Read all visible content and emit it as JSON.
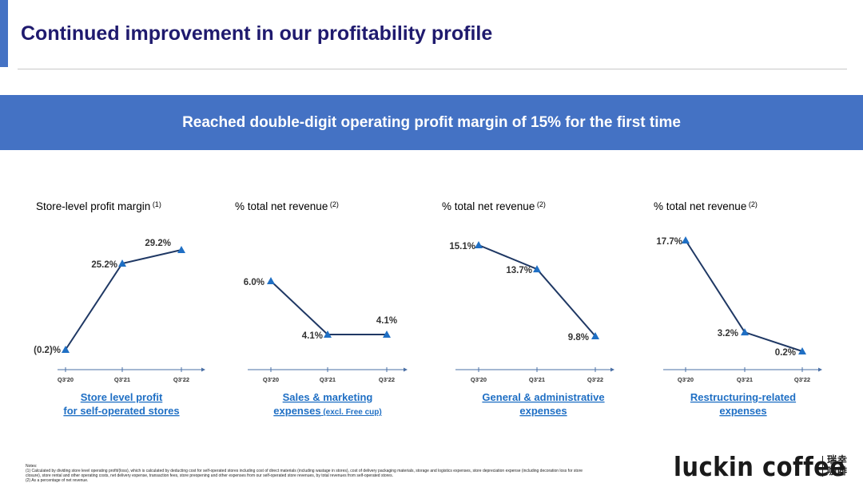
{
  "title": "Continued improvement in our profitability profile",
  "banner": "Reached double-digit operating profit margin of 15% for the first time",
  "colors": {
    "accent": "#4472c4",
    "title": "#1f1a6e",
    "line": "#1f3864",
    "marker": "#1f6fc4",
    "caption": "#1f6fc4"
  },
  "chart_data": [
    {
      "type": "line",
      "header": "Store-level profit margin",
      "header_sup": "(1)",
      "categories": [
        "Q3'20",
        "Q3'21",
        "Q3'22"
      ],
      "values": [
        -0.2,
        25.2,
        29.2
      ],
      "value_labels": [
        "(0.2)%",
        "25.2%",
        "29.2%"
      ],
      "caption_lines": [
        "Store level profit",
        "for self-operated stores"
      ],
      "caption_suffix": ""
    },
    {
      "type": "line",
      "header": "% total net revenue",
      "header_sup": "(2)",
      "categories": [
        "Q3'20",
        "Q3'21",
        "Q3'22"
      ],
      "values": [
        6.0,
        4.1,
        4.1
      ],
      "value_labels": [
        "6.0%",
        "4.1%",
        "4.1%"
      ],
      "caption_lines": [
        "Sales & marketing",
        "expenses"
      ],
      "caption_suffix": " (excl. Free cup)"
    },
    {
      "type": "line",
      "header": "% total net revenue",
      "header_sup": "(2)",
      "categories": [
        "Q3'20",
        "Q3'21",
        "Q3'22"
      ],
      "values": [
        15.1,
        13.7,
        9.8
      ],
      "value_labels": [
        "15.1%",
        "13.7%",
        "9.8%"
      ],
      "caption_lines": [
        "General & administrative",
        "expenses"
      ],
      "caption_suffix": ""
    },
    {
      "type": "line",
      "header": "% total net revenue",
      "header_sup": "(2)",
      "categories": [
        "Q3'20",
        "Q3'21",
        "Q3'22"
      ],
      "values": [
        17.7,
        3.2,
        0.2
      ],
      "value_labels": [
        "17.7%",
        "3.2%",
        "0.2%"
      ],
      "caption_lines": [
        "Restructuring-related",
        "expenses"
      ],
      "caption_suffix": ""
    }
  ],
  "notes": [
    "Notes:",
    "(1)  Calculated by dividing store level operating profit/(loss), which is calculated by deducting cost for self-operated stores including cost of direct materials (including wastage in stores), cost of delivery packaging materials, storage and logistics expenses, store depreciation expense (including decoration loss for store",
    "closure), store rental and other operating costs, net delivery expense, transaction fees, store preopening and other expenses from our self-operated store revenues, by total revenues from self-operated stores.",
    "(2)  As a percentage of net revenue."
  ],
  "logo": {
    "text": "luckin coffee",
    "cn_line1": "瑞幸",
    "cn_line2": "咖啡"
  }
}
